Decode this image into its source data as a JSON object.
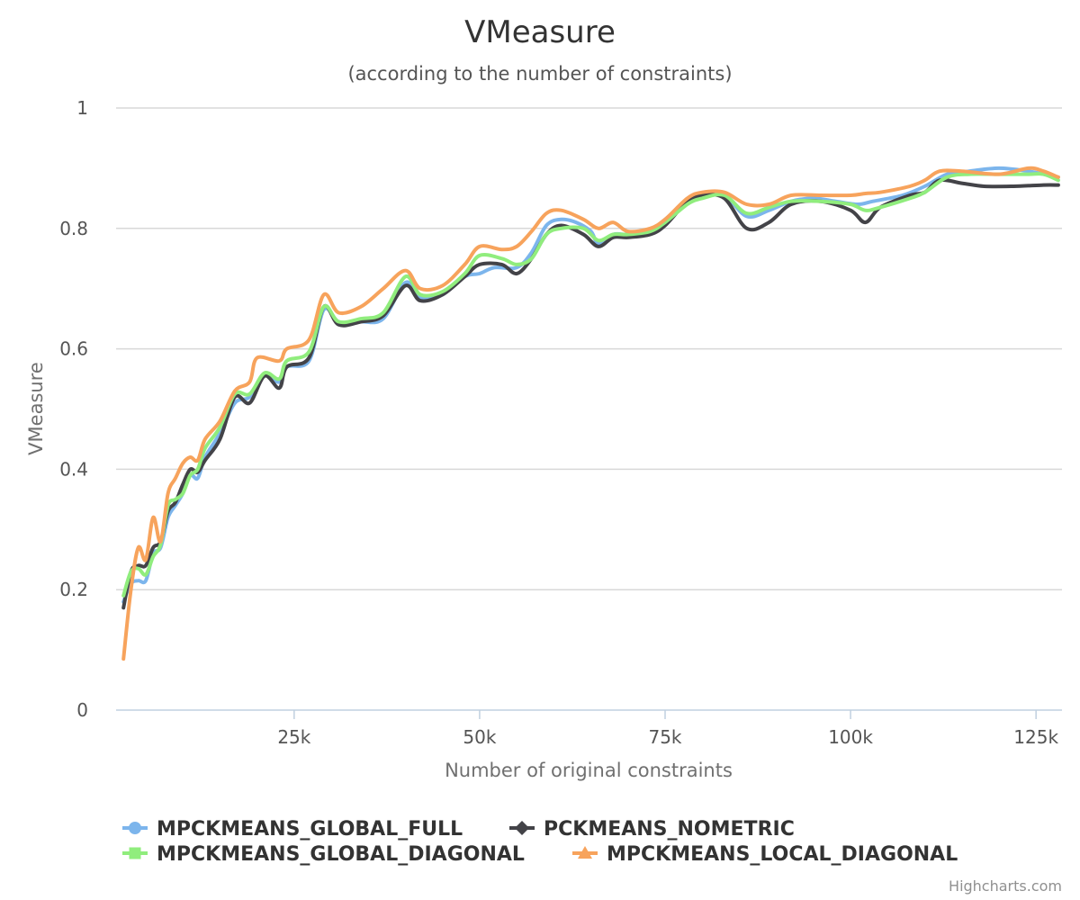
{
  "chart_data": {
    "type": "line",
    "title": "VMeasure",
    "subtitle": "(according to the number of constraints)",
    "xlabel": "Number of original constraints",
    "ylabel": "VMeasure",
    "xlim": [
      1000,
      128500
    ],
    "ylim": [
      0,
      1
    ],
    "x_ticks": [
      25000,
      50000,
      75000,
      100000,
      125000
    ],
    "x_tick_labels": [
      "25k",
      "50k",
      "75k",
      "100k",
      "125k"
    ],
    "y_ticks": [
      0,
      0.2,
      0.4,
      0.6,
      0.8,
      1
    ],
    "y_tick_labels": [
      "0",
      "0.2",
      "0.4",
      "0.6",
      "0.8",
      "1"
    ],
    "grid": true,
    "legend_position": "bottom",
    "credits": "Highcharts.com",
    "series": [
      {
        "name": "MPCKMEANS_GLOBAL_FULL",
        "color": "#7cb5ec",
        "marker": "circle",
        "points": [
          [
            2000,
            0.18
          ],
          [
            3000,
            0.21
          ],
          [
            4000,
            0.215
          ],
          [
            5000,
            0.215
          ],
          [
            6000,
            0.26
          ],
          [
            7000,
            0.27
          ],
          [
            8000,
            0.32
          ],
          [
            9000,
            0.34
          ],
          [
            10000,
            0.36
          ],
          [
            11000,
            0.39
          ],
          [
            12000,
            0.385
          ],
          [
            13000,
            0.42
          ],
          [
            15000,
            0.46
          ],
          [
            17000,
            0.51
          ],
          [
            19000,
            0.52
          ],
          [
            21000,
            0.555
          ],
          [
            23000,
            0.545
          ],
          [
            24000,
            0.57
          ],
          [
            27000,
            0.58
          ],
          [
            29000,
            0.665
          ],
          [
            31000,
            0.645
          ],
          [
            34000,
            0.645
          ],
          [
            37000,
            0.65
          ],
          [
            40000,
            0.71
          ],
          [
            42000,
            0.685
          ],
          [
            45000,
            0.69
          ],
          [
            48000,
            0.72
          ],
          [
            50000,
            0.725
          ],
          [
            52000,
            0.735
          ],
          [
            55000,
            0.735
          ],
          [
            57000,
            0.76
          ],
          [
            59000,
            0.805
          ],
          [
            61000,
            0.815
          ],
          [
            63000,
            0.81
          ],
          [
            65000,
            0.795
          ],
          [
            66000,
            0.775
          ],
          [
            68000,
            0.79
          ],
          [
            70000,
            0.79
          ],
          [
            73000,
            0.795
          ],
          [
            75000,
            0.815
          ],
          [
            78000,
            0.845
          ],
          [
            80000,
            0.855
          ],
          [
            83000,
            0.855
          ],
          [
            86000,
            0.82
          ],
          [
            89000,
            0.83
          ],
          [
            92000,
            0.845
          ],
          [
            95000,
            0.85
          ],
          [
            98000,
            0.845
          ],
          [
            101000,
            0.84
          ],
          [
            103000,
            0.845
          ],
          [
            107000,
            0.855
          ],
          [
            110000,
            0.87
          ],
          [
            113000,
            0.89
          ],
          [
            116000,
            0.895
          ],
          [
            120000,
            0.9
          ],
          [
            124000,
            0.895
          ],
          [
            126000,
            0.89
          ],
          [
            128000,
            0.885
          ]
        ]
      },
      {
        "name": "PCKMEANS_NOMETRIC",
        "color": "#434348",
        "marker": "diamond",
        "points": [
          [
            2000,
            0.17
          ],
          [
            3000,
            0.23
          ],
          [
            4000,
            0.24
          ],
          [
            5000,
            0.24
          ],
          [
            6000,
            0.27
          ],
          [
            7000,
            0.28
          ],
          [
            8000,
            0.33
          ],
          [
            9000,
            0.345
          ],
          [
            10000,
            0.375
          ],
          [
            11000,
            0.4
          ],
          [
            12000,
            0.395
          ],
          [
            13000,
            0.415
          ],
          [
            15000,
            0.45
          ],
          [
            17000,
            0.52
          ],
          [
            19000,
            0.51
          ],
          [
            21000,
            0.555
          ],
          [
            23000,
            0.535
          ],
          [
            24000,
            0.57
          ],
          [
            27000,
            0.585
          ],
          [
            29000,
            0.67
          ],
          [
            31000,
            0.64
          ],
          [
            34000,
            0.645
          ],
          [
            37000,
            0.655
          ],
          [
            40000,
            0.705
          ],
          [
            42000,
            0.68
          ],
          [
            45000,
            0.69
          ],
          [
            48000,
            0.72
          ],
          [
            50000,
            0.74
          ],
          [
            53000,
            0.74
          ],
          [
            55000,
            0.725
          ],
          [
            57000,
            0.75
          ],
          [
            59000,
            0.79
          ],
          [
            61000,
            0.805
          ],
          [
            64000,
            0.79
          ],
          [
            66000,
            0.77
          ],
          [
            68000,
            0.785
          ],
          [
            70000,
            0.785
          ],
          [
            73000,
            0.79
          ],
          [
            75000,
            0.805
          ],
          [
            78000,
            0.845
          ],
          [
            80000,
            0.855
          ],
          [
            83000,
            0.85
          ],
          [
            86000,
            0.8
          ],
          [
            89000,
            0.81
          ],
          [
            92000,
            0.84
          ],
          [
            96000,
            0.845
          ],
          [
            100000,
            0.83
          ],
          [
            102000,
            0.81
          ],
          [
            104000,
            0.835
          ],
          [
            108000,
            0.855
          ],
          [
            110000,
            0.86
          ],
          [
            112000,
            0.88
          ],
          [
            115000,
            0.875
          ],
          [
            118000,
            0.87
          ],
          [
            122000,
            0.87
          ],
          [
            126000,
            0.872
          ],
          [
            128000,
            0.872
          ]
        ]
      },
      {
        "name": "MPCKMEANS_GLOBAL_DIAGONAL",
        "color": "#90ed7d",
        "marker": "square",
        "points": [
          [
            2000,
            0.19
          ],
          [
            3000,
            0.23
          ],
          [
            4000,
            0.235
          ],
          [
            5000,
            0.225
          ],
          [
            6000,
            0.255
          ],
          [
            7000,
            0.275
          ],
          [
            8000,
            0.34
          ],
          [
            9000,
            0.35
          ],
          [
            10000,
            0.36
          ],
          [
            11000,
            0.39
          ],
          [
            12000,
            0.4
          ],
          [
            13000,
            0.435
          ],
          [
            15000,
            0.47
          ],
          [
            17000,
            0.525
          ],
          [
            19000,
            0.525
          ],
          [
            21000,
            0.56
          ],
          [
            23000,
            0.55
          ],
          [
            24000,
            0.58
          ],
          [
            27000,
            0.595
          ],
          [
            29000,
            0.67
          ],
          [
            31000,
            0.645
          ],
          [
            34000,
            0.65
          ],
          [
            37000,
            0.66
          ],
          [
            40000,
            0.72
          ],
          [
            42000,
            0.69
          ],
          [
            45000,
            0.695
          ],
          [
            48000,
            0.725
          ],
          [
            50000,
            0.755
          ],
          [
            53000,
            0.75
          ],
          [
            55000,
            0.74
          ],
          [
            57000,
            0.75
          ],
          [
            59000,
            0.79
          ],
          [
            61000,
            0.8
          ],
          [
            64000,
            0.8
          ],
          [
            66000,
            0.78
          ],
          [
            68000,
            0.79
          ],
          [
            70000,
            0.79
          ],
          [
            73000,
            0.795
          ],
          [
            75000,
            0.81
          ],
          [
            78000,
            0.84
          ],
          [
            80000,
            0.85
          ],
          [
            83000,
            0.855
          ],
          [
            86000,
            0.825
          ],
          [
            89000,
            0.835
          ],
          [
            92000,
            0.845
          ],
          [
            96000,
            0.845
          ],
          [
            100000,
            0.84
          ],
          [
            102000,
            0.83
          ],
          [
            104000,
            0.835
          ],
          [
            108000,
            0.85
          ],
          [
            110000,
            0.86
          ],
          [
            113000,
            0.885
          ],
          [
            116000,
            0.89
          ],
          [
            120000,
            0.89
          ],
          [
            124000,
            0.89
          ],
          [
            126000,
            0.89
          ],
          [
            128000,
            0.88
          ]
        ]
      },
      {
        "name": "MPCKMEANS_LOCAL_DIAGONAL",
        "color": "#f7a35c",
        "marker": "triangle",
        "points": [
          [
            2000,
            0.085
          ],
          [
            3000,
            0.2
          ],
          [
            4000,
            0.27
          ],
          [
            5000,
            0.25
          ],
          [
            6000,
            0.32
          ],
          [
            7000,
            0.28
          ],
          [
            8000,
            0.36
          ],
          [
            9000,
            0.385
          ],
          [
            10000,
            0.41
          ],
          [
            11000,
            0.42
          ],
          [
            12000,
            0.415
          ],
          [
            13000,
            0.45
          ],
          [
            15000,
            0.48
          ],
          [
            17000,
            0.53
          ],
          [
            19000,
            0.545
          ],
          [
            20000,
            0.585
          ],
          [
            23000,
            0.58
          ],
          [
            24000,
            0.6
          ],
          [
            27000,
            0.615
          ],
          [
            29000,
            0.69
          ],
          [
            31000,
            0.66
          ],
          [
            34000,
            0.67
          ],
          [
            37000,
            0.7
          ],
          [
            40000,
            0.73
          ],
          [
            42000,
            0.7
          ],
          [
            45000,
            0.705
          ],
          [
            48000,
            0.74
          ],
          [
            50000,
            0.77
          ],
          [
            53000,
            0.765
          ],
          [
            55000,
            0.77
          ],
          [
            57000,
            0.795
          ],
          [
            59000,
            0.825
          ],
          [
            61000,
            0.83
          ],
          [
            64000,
            0.815
          ],
          [
            66000,
            0.8
          ],
          [
            68000,
            0.81
          ],
          [
            70000,
            0.795
          ],
          [
            73000,
            0.8
          ],
          [
            75000,
            0.815
          ],
          [
            78000,
            0.85
          ],
          [
            80000,
            0.86
          ],
          [
            83000,
            0.86
          ],
          [
            86000,
            0.84
          ],
          [
            89000,
            0.84
          ],
          [
            92000,
            0.855
          ],
          [
            96000,
            0.855
          ],
          [
            100000,
            0.855
          ],
          [
            102000,
            0.858
          ],
          [
            104000,
            0.86
          ],
          [
            108000,
            0.87
          ],
          [
            110000,
            0.88
          ],
          [
            112000,
            0.895
          ],
          [
            115000,
            0.895
          ],
          [
            120000,
            0.89
          ],
          [
            124000,
            0.9
          ],
          [
            126000,
            0.895
          ],
          [
            128000,
            0.885
          ]
        ]
      }
    ]
  }
}
